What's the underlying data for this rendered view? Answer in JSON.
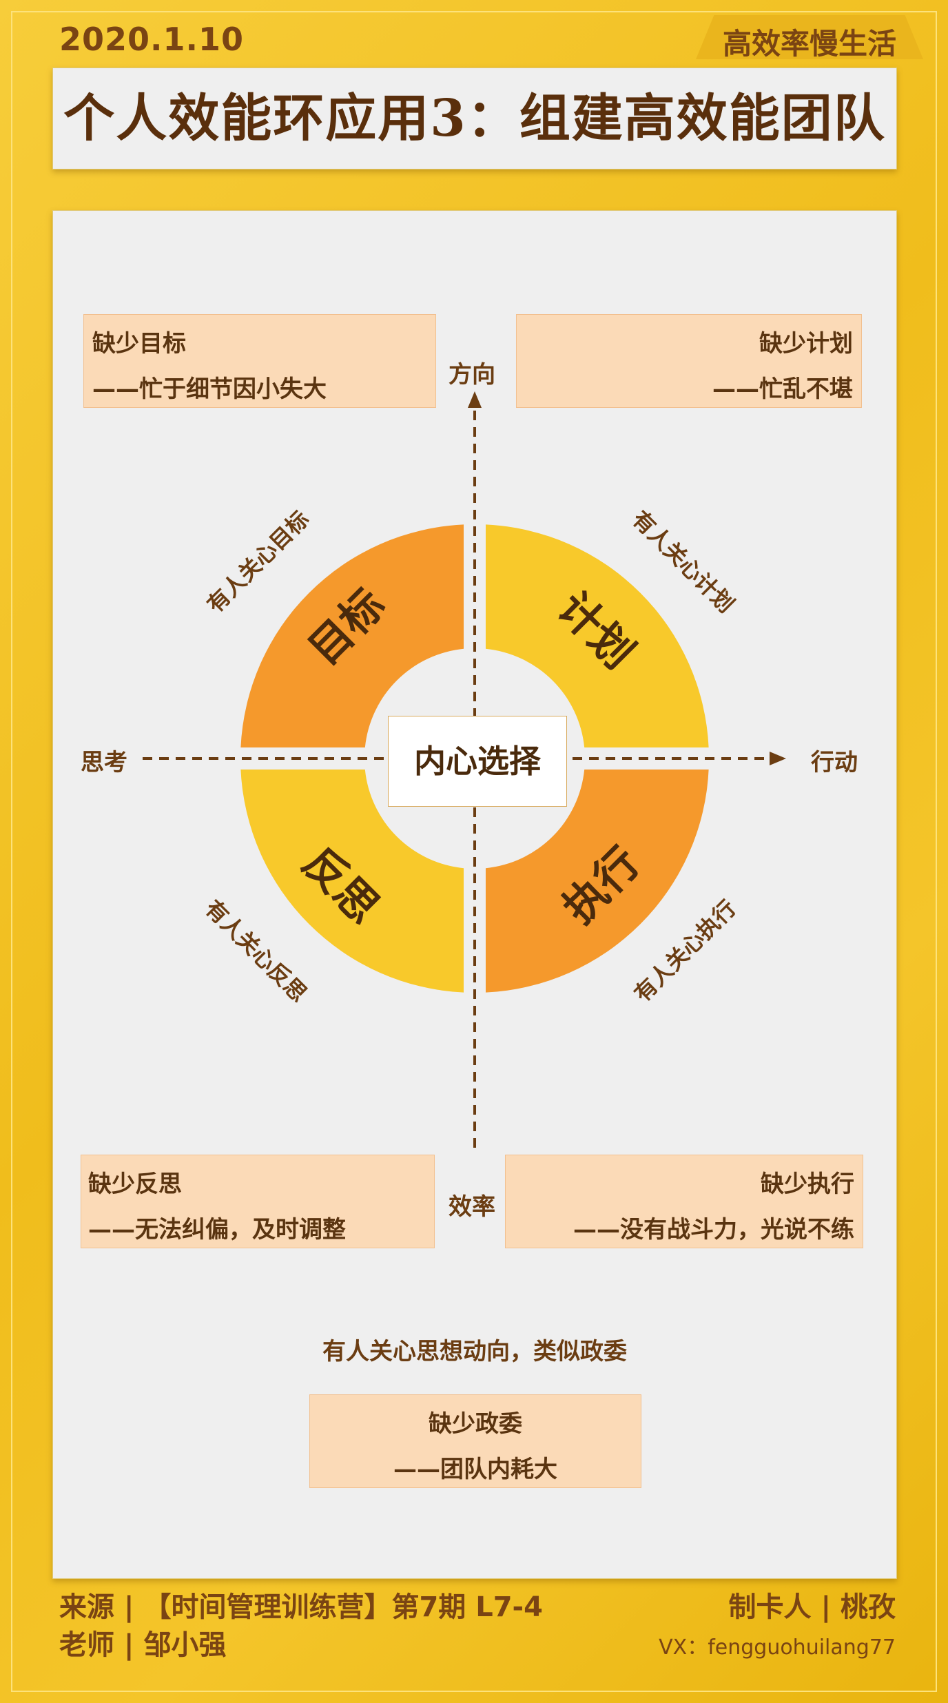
{
  "header": {
    "date": "2020.1.10",
    "tag": "高效率慢生活",
    "title": "个人效能环应用3：组建高效能团队"
  },
  "axes": {
    "top": "方向",
    "bottom": "效率",
    "left": "思考",
    "right": "行动"
  },
  "center": "内心选择",
  "segments": {
    "top_left": {
      "label": "目标",
      "caption": "有人关心目标",
      "color": "#f5992c"
    },
    "top_right": {
      "label": "计划",
      "caption": "有人关心计划",
      "color": "#f8c92b"
    },
    "bottom_left": {
      "label": "反思",
      "caption": "有人关心反思",
      "color": "#f8c92b"
    },
    "bottom_right": {
      "label": "执行",
      "caption": "有人关心执行",
      "color": "#f5992c"
    }
  },
  "boxes": {
    "top_left": {
      "line1": "缺少目标",
      "line2": "——忙于细节因小失大"
    },
    "top_right": {
      "line1": "缺少计划",
      "line2": "——忙乱不堪"
    },
    "bottom_left": {
      "line1": "缺少反思",
      "line2": "——无法纠偏，及时调整"
    },
    "bottom_right": {
      "line1": "缺少执行",
      "line2": "——没有战斗力，光说不练"
    }
  },
  "political": {
    "caption": "有人关心思想动向，类似政委",
    "line1": "缺少政委",
    "line2": "——团队内耗大"
  },
  "footer": {
    "source": "来源 | 【时间管理训练营】第7期  L7-4",
    "teacher": "老师 | 邹小强",
    "maker": "制卡人 | 桃孜",
    "vx": "VX：fengguohuilang77"
  },
  "colors": {
    "background": "#f2c025",
    "panel": "#efefef",
    "box": "#fbdab7",
    "text": "#6b3d12"
  }
}
